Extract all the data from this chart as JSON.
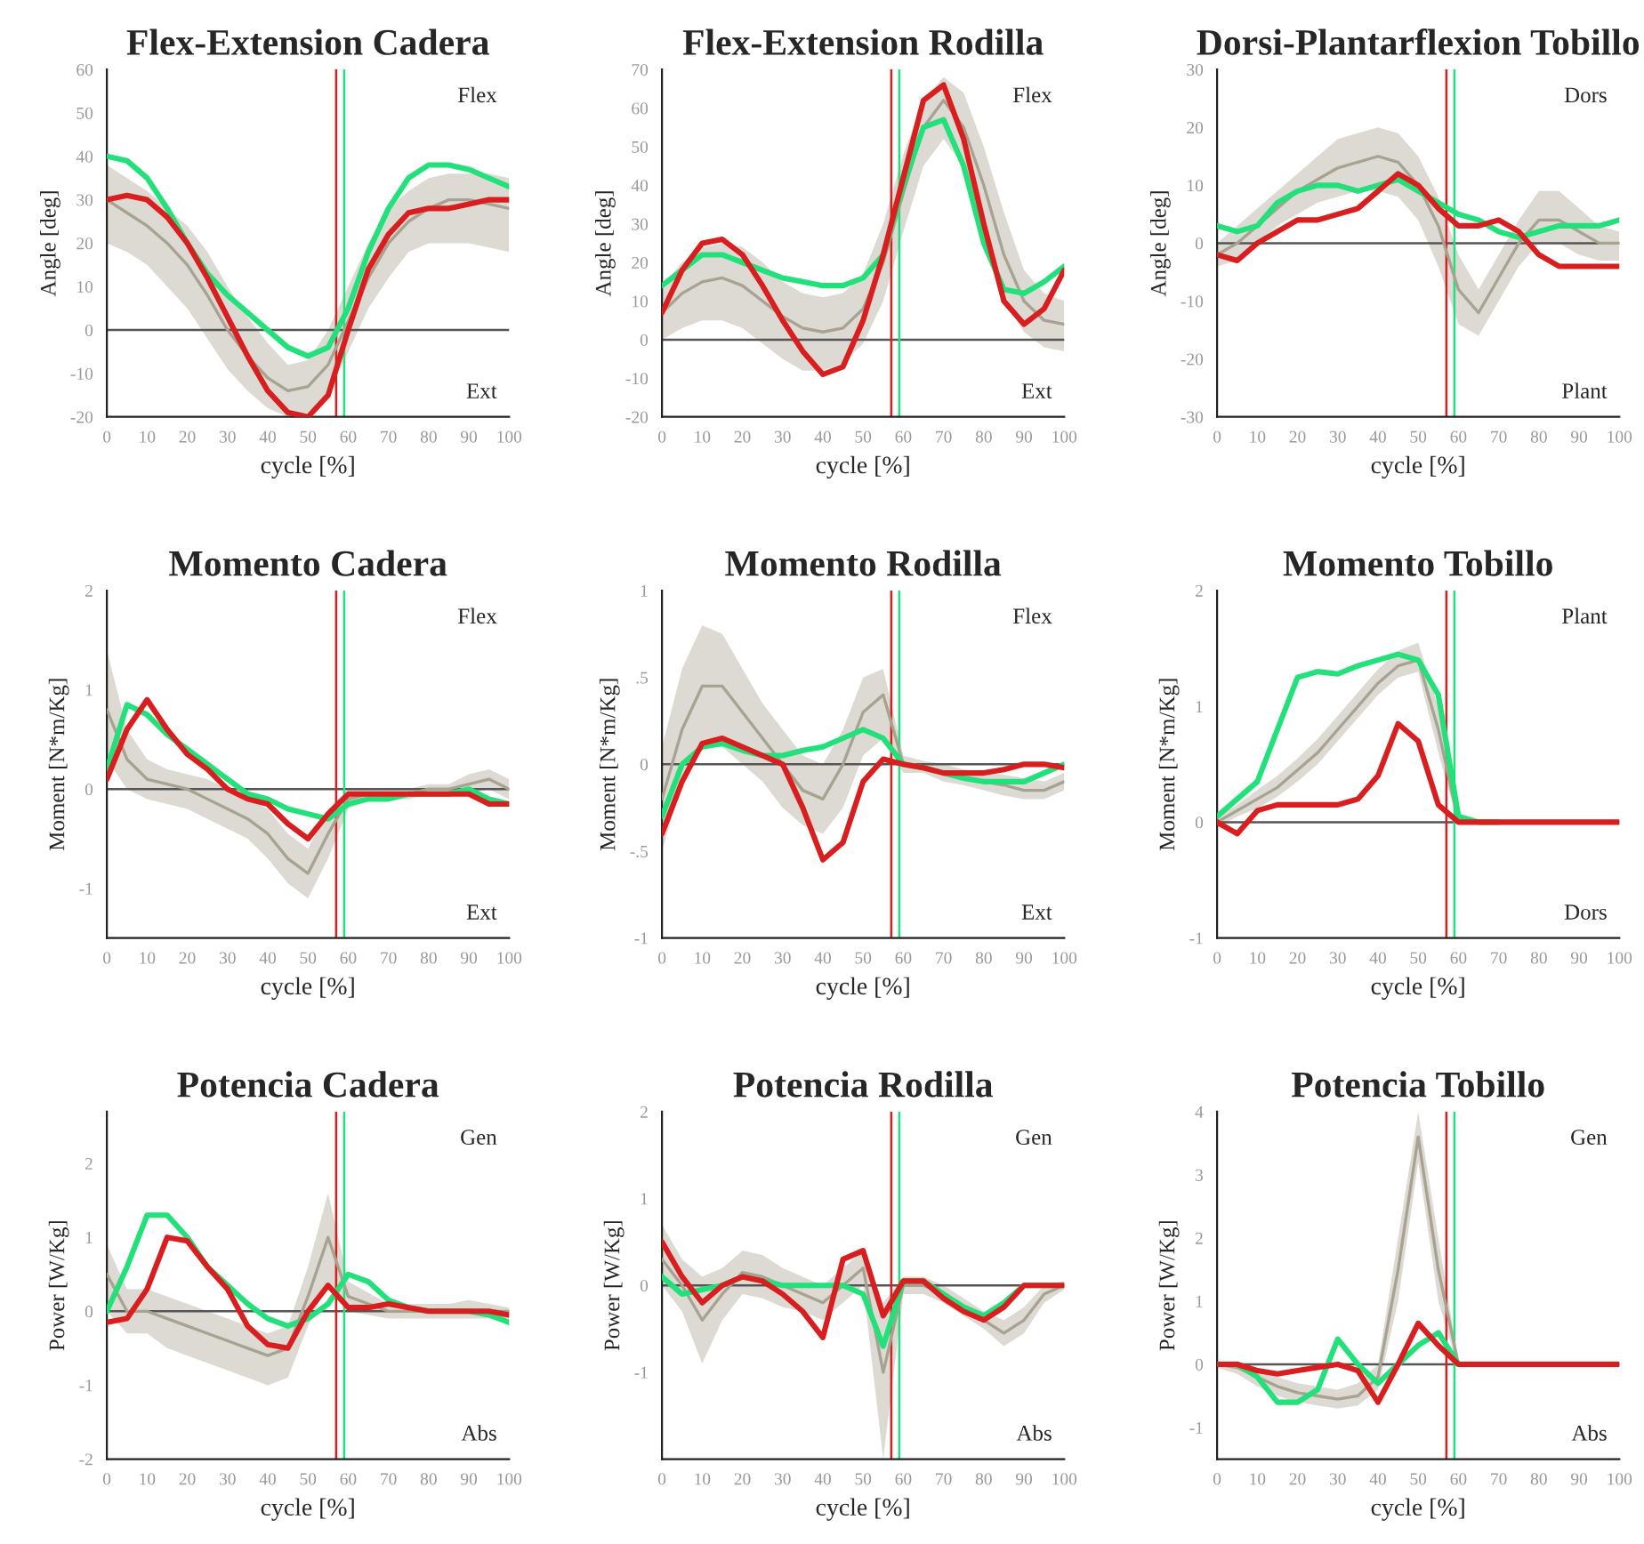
{
  "chart_data": [
    {
      "type": "line",
      "title": "Flex-Extension Cadera",
      "xlabel": "cycle [%]",
      "ylabel": "Angle [deg]",
      "xlim": [
        0,
        100
      ],
      "xticks": [
        0,
        10,
        20,
        30,
        40,
        50,
        60,
        70,
        80,
        90,
        100
      ],
      "ylim": [
        -20,
        60
      ],
      "yticks": [
        -20,
        -10,
        0,
        10,
        20,
        30,
        40,
        50,
        60
      ],
      "grid": false,
      "annotations": [
        "Flex",
        "Ext"
      ],
      "ref_lines": [
        {
          "axis": "y",
          "value": 0,
          "color": "#555555"
        },
        {
          "axis": "x",
          "value": 57,
          "color": "#d81e1e"
        },
        {
          "axis": "x",
          "value": 59,
          "color": "#22e07a"
        }
      ],
      "x": [
        0,
        5,
        10,
        15,
        20,
        25,
        30,
        35,
        40,
        45,
        50,
        55,
        60,
        65,
        70,
        75,
        80,
        85,
        90,
        95,
        100
      ],
      "series": [
        {
          "color": "#a8a290",
          "values": [
            30,
            27,
            24,
            20,
            15,
            8,
            0,
            -6,
            -11,
            -14,
            -13,
            -8,
            2,
            12,
            20,
            25,
            28,
            30,
            30,
            29,
            28
          ],
          "lower": [
            20,
            18,
            15,
            10,
            5,
            -2,
            -9,
            -14,
            -18,
            -20,
            -19,
            -15,
            -5,
            5,
            12,
            18,
            20,
            20,
            20,
            19,
            18
          ],
          "upper": [
            38,
            35,
            32,
            28,
            24,
            18,
            10,
            3,
            -3,
            -8,
            -7,
            0,
            10,
            20,
            28,
            32,
            35,
            36,
            36,
            36,
            35
          ]
        },
        {
          "color": "#22e07a",
          "values": [
            40,
            39,
            35,
            28,
            20,
            13,
            8,
            4,
            0,
            -4,
            -6,
            -4,
            5,
            18,
            28,
            35,
            38,
            38,
            37,
            35,
            33
          ]
        },
        {
          "color": "#d81e1e",
          "values": [
            30,
            31,
            30,
            26,
            20,
            12,
            3,
            -6,
            -14,
            -19,
            -20,
            -15,
            0,
            14,
            22,
            27,
            28,
            28,
            29,
            30,
            30
          ]
        }
      ]
    },
    {
      "type": "line",
      "title": "Flex-Extension Rodilla",
      "xlabel": "cycle [%]",
      "ylabel": "Angle [deg]",
      "xlim": [
        0,
        100
      ],
      "xticks": [
        0,
        10,
        20,
        30,
        40,
        50,
        60,
        70,
        80,
        90,
        100
      ],
      "ylim": [
        -20,
        70
      ],
      "yticks": [
        -20,
        -10,
        0,
        10,
        20,
        30,
        40,
        50,
        60,
        70
      ],
      "grid": false,
      "annotations": [
        "Flex",
        "Ext"
      ],
      "ref_lines": [
        {
          "axis": "y",
          "value": 0,
          "color": "#555555"
        },
        {
          "axis": "x",
          "value": 57,
          "color": "#d81e1e"
        },
        {
          "axis": "x",
          "value": 59,
          "color": "#22e07a"
        }
      ],
      "x": [
        0,
        5,
        10,
        15,
        20,
        25,
        30,
        35,
        40,
        45,
        50,
        55,
        60,
        65,
        70,
        75,
        80,
        85,
        90,
        95,
        100
      ],
      "series": [
        {
          "color": "#a8a290",
          "values": [
            7,
            12,
            15,
            16,
            14,
            10,
            6,
            3,
            2,
            3,
            8,
            20,
            38,
            55,
            62,
            55,
            40,
            22,
            10,
            5,
            4
          ],
          "lower": [
            0,
            3,
            5,
            5,
            3,
            -1,
            -5,
            -8,
            -8,
            -6,
            -1,
            10,
            28,
            45,
            52,
            45,
            28,
            10,
            2,
            -2,
            -3
          ],
          "upper": [
            14,
            20,
            24,
            25,
            24,
            20,
            15,
            12,
            11,
            12,
            17,
            30,
            48,
            62,
            68,
            64,
            50,
            33,
            18,
            12,
            10
          ]
        },
        {
          "color": "#22e07a",
          "values": [
            14,
            18,
            22,
            22,
            20,
            18,
            16,
            15,
            14,
            14,
            16,
            22,
            40,
            55,
            57,
            45,
            25,
            13,
            12,
            15,
            19
          ]
        },
        {
          "color": "#d81e1e",
          "values": [
            7,
            18,
            25,
            26,
            22,
            14,
            5,
            -3,
            -9,
            -7,
            5,
            22,
            42,
            62,
            66,
            52,
            30,
            10,
            4,
            8,
            18
          ]
        }
      ]
    },
    {
      "type": "line",
      "title": "Dorsi-Plantarflexion Tobillo",
      "xlabel": "cycle [%]",
      "ylabel": "Angle [deg]",
      "xlim": [
        0,
        100
      ],
      "xticks": [
        0,
        10,
        20,
        30,
        40,
        50,
        60,
        70,
        80,
        90,
        100
      ],
      "ylim": [
        -30,
        30
      ],
      "yticks": [
        -30,
        -20,
        -10,
        0,
        10,
        20,
        30
      ],
      "grid": false,
      "annotations": [
        "Dors",
        "Plant"
      ],
      "ref_lines": [
        {
          "axis": "y",
          "value": 0,
          "color": "#555555"
        },
        {
          "axis": "x",
          "value": 57,
          "color": "#d81e1e"
        },
        {
          "axis": "x",
          "value": 59,
          "color": "#22e07a"
        }
      ],
      "x": [
        0,
        5,
        10,
        15,
        20,
        25,
        30,
        35,
        40,
        45,
        50,
        55,
        60,
        65,
        70,
        75,
        80,
        85,
        90,
        95,
        100
      ],
      "series": [
        {
          "color": "#a8a290",
          "values": [
            -2,
            0,
            3,
            6,
            9,
            11,
            13,
            14,
            15,
            14,
            10,
            3,
            -8,
            -12,
            -6,
            0,
            4,
            4,
            2,
            0,
            0
          ],
          "lower": [
            -4,
            -3,
            0,
            3,
            5,
            7,
            8,
            9,
            9,
            8,
            4,
            -4,
            -14,
            -16,
            -10,
            -4,
            0,
            0,
            -2,
            -3,
            -3
          ],
          "upper": [
            0,
            3,
            6,
            9,
            12,
            15,
            18,
            19,
            20,
            19,
            15,
            8,
            -2,
            -8,
            -2,
            4,
            9,
            9,
            6,
            3,
            2
          ]
        },
        {
          "color": "#22e07a",
          "values": [
            3,
            2,
            3,
            7,
            9,
            10,
            10,
            9,
            10,
            11,
            9,
            7,
            5,
            4,
            2,
            1,
            2,
            3,
            3,
            3,
            4
          ]
        },
        {
          "color": "#d81e1e",
          "values": [
            -2,
            -3,
            0,
            2,
            4,
            4,
            5,
            6,
            9,
            12,
            10,
            6,
            3,
            3,
            4,
            2,
            -2,
            -4,
            -4,
            -4,
            -4
          ]
        }
      ]
    },
    {
      "type": "line",
      "title": "Momento Cadera",
      "xlabel": "cycle [%]",
      "ylabel": "Moment [N*m/Kg]",
      "xlim": [
        0,
        100
      ],
      "xticks": [
        0,
        10,
        20,
        30,
        40,
        50,
        60,
        70,
        80,
        90,
        100
      ],
      "ylim": [
        -1.5,
        2
      ],
      "yticks": [
        -1,
        0,
        1,
        2
      ],
      "grid": false,
      "annotations": [
        "Flex",
        "Ext"
      ],
      "ref_lines": [
        {
          "axis": "y",
          "value": 0,
          "color": "#555555"
        },
        {
          "axis": "x",
          "value": 57,
          "color": "#d81e1e"
        },
        {
          "axis": "x",
          "value": 59,
          "color": "#22e07a"
        }
      ],
      "x": [
        0,
        5,
        10,
        15,
        20,
        25,
        30,
        35,
        40,
        45,
        50,
        55,
        60,
        65,
        70,
        75,
        80,
        85,
        90,
        95,
        100
      ],
      "series": [
        {
          "color": "#a8a290",
          "values": [
            0.8,
            0.3,
            0.1,
            0.05,
            0,
            -0.1,
            -0.2,
            -0.3,
            -0.45,
            -0.7,
            -0.85,
            -0.45,
            -0.1,
            -0.05,
            -0.05,
            -0.05,
            0,
            0,
            0.05,
            0.1,
            0
          ],
          "lower": [
            0.3,
            0,
            -0.1,
            -0.15,
            -0.2,
            -0.3,
            -0.4,
            -0.5,
            -0.7,
            -0.95,
            -1.1,
            -0.7,
            -0.2,
            -0.1,
            -0.1,
            -0.1,
            -0.05,
            -0.05,
            -0.05,
            0,
            -0.1
          ],
          "upper": [
            1.4,
            0.6,
            0.3,
            0.2,
            0.15,
            0.1,
            0,
            -0.1,
            -0.2,
            -0.45,
            -0.6,
            -0.2,
            0,
            0,
            0,
            0,
            0.05,
            0.05,
            0.15,
            0.2,
            0.1
          ]
        },
        {
          "color": "#22e07a",
          "values": [
            0.2,
            0.85,
            0.75,
            0.55,
            0.4,
            0.25,
            0.1,
            -0.05,
            -0.1,
            -0.2,
            -0.25,
            -0.3,
            -0.15,
            -0.1,
            -0.1,
            -0.05,
            -0.05,
            -0.05,
            0,
            -0.1,
            -0.15
          ]
        },
        {
          "color": "#d81e1e",
          "values": [
            0.1,
            0.6,
            0.9,
            0.6,
            0.35,
            0.2,
            0,
            -0.1,
            -0.15,
            -0.35,
            -0.5,
            -0.25,
            -0.05,
            -0.05,
            -0.05,
            -0.05,
            -0.05,
            -0.05,
            -0.05,
            -0.15,
            -0.15
          ]
        }
      ]
    },
    {
      "type": "line",
      "title": "Momento Rodilla",
      "xlabel": "cycle [%]",
      "ylabel": "Moment [N*m/Kg]",
      "xlim": [
        0,
        100
      ],
      "xticks": [
        0,
        10,
        20,
        30,
        40,
        50,
        60,
        70,
        80,
        90,
        100
      ],
      "ylim": [
        -1,
        1
      ],
      "yticks": [
        -1,
        {
          "value": -0.5,
          "label": "-.5"
        },
        0,
        {
          "value": 0.5,
          "label": ".5"
        },
        1
      ],
      "grid": false,
      "annotations": [
        "Flex",
        "Ext"
      ],
      "ref_lines": [
        {
          "axis": "y",
          "value": 0,
          "color": "#555555"
        },
        {
          "axis": "x",
          "value": 57,
          "color": "#d81e1e"
        },
        {
          "axis": "x",
          "value": 59,
          "color": "#22e07a"
        }
      ],
      "x": [
        0,
        5,
        10,
        15,
        20,
        25,
        30,
        35,
        40,
        45,
        50,
        55,
        60,
        65,
        70,
        75,
        80,
        85,
        90,
        95,
        100
      ],
      "series": [
        {
          "color": "#a8a290",
          "values": [
            -0.2,
            0.2,
            0.45,
            0.45,
            0.3,
            0.15,
            0,
            -0.15,
            -0.2,
            0,
            0.3,
            0.4,
            0,
            -0.02,
            -0.05,
            -0.08,
            -0.1,
            -0.12,
            -0.15,
            -0.15,
            -0.1
          ],
          "lower": [
            -0.5,
            -0.1,
            0.1,
            0.1,
            0,
            -0.1,
            -0.25,
            -0.35,
            -0.4,
            -0.25,
            0.05,
            0.15,
            -0.05,
            -0.05,
            -0.1,
            -0.12,
            -0.15,
            -0.18,
            -0.2,
            -0.2,
            -0.15
          ],
          "upper": [
            0.1,
            0.55,
            0.8,
            0.75,
            0.55,
            0.35,
            0.2,
            0.05,
            0,
            0.2,
            0.5,
            0.55,
            0.05,
            0.02,
            0,
            -0.03,
            -0.05,
            -0.06,
            -0.08,
            -0.1,
            -0.05
          ]
        },
        {
          "color": "#22e07a",
          "values": [
            -0.3,
            0,
            0.1,
            0.12,
            0.08,
            0.05,
            0.05,
            0.08,
            0.1,
            0.15,
            0.2,
            0.15,
            0,
            -0.02,
            -0.05,
            -0.08,
            -0.1,
            -0.1,
            -0.1,
            -0.05,
            0
          ]
        },
        {
          "color": "#d81e1e",
          "values": [
            -0.4,
            -0.1,
            0.12,
            0.15,
            0.1,
            0.05,
            0,
            -0.25,
            -0.55,
            -0.45,
            -0.1,
            0.03,
            0,
            -0.02,
            -0.05,
            -0.05,
            -0.05,
            -0.03,
            0,
            0,
            -0.02
          ]
        }
      ]
    },
    {
      "type": "line",
      "title": "Momento Tobillo",
      "xlabel": "cycle [%]",
      "ylabel": "Moment [N*m/Kg]",
      "xlim": [
        0,
        100
      ],
      "xticks": [
        0,
        10,
        20,
        30,
        40,
        50,
        60,
        70,
        80,
        90,
        100
      ],
      "ylim": [
        -1,
        2
      ],
      "yticks": [
        -1,
        0,
        1,
        2
      ],
      "grid": false,
      "annotations": [
        "Plant",
        "Dors"
      ],
      "ref_lines": [
        {
          "axis": "y",
          "value": 0,
          "color": "#555555"
        },
        {
          "axis": "x",
          "value": 57,
          "color": "#d81e1e"
        },
        {
          "axis": "x",
          "value": 59,
          "color": "#22e07a"
        }
      ],
      "x": [
        0,
        5,
        10,
        15,
        20,
        25,
        30,
        35,
        40,
        45,
        50,
        55,
        60,
        65,
        70,
        75,
        80,
        85,
        90,
        95,
        100
      ],
      "series": [
        {
          "color": "#a8a290",
          "values": [
            0,
            0.1,
            0.2,
            0.3,
            0.45,
            0.6,
            0.8,
            1,
            1.2,
            1.35,
            1.4,
            0.8,
            0,
            0,
            0,
            0,
            0,
            0,
            0,
            0,
            0
          ],
          "lower": [
            -0.05,
            0.05,
            0.12,
            0.22,
            0.35,
            0.5,
            0.7,
            0.9,
            1.1,
            1.25,
            1.3,
            0.6,
            -0.02,
            -0.02,
            -0.02,
            -0.02,
            -0.02,
            -0.02,
            -0.02,
            -0.02,
            -0.02
          ],
          "upper": [
            0.05,
            0.15,
            0.28,
            0.4,
            0.55,
            0.72,
            0.92,
            1.12,
            1.32,
            1.48,
            1.55,
            1,
            0.02,
            0.02,
            0.02,
            0.02,
            0.02,
            0.02,
            0.02,
            0.02,
            0.02
          ]
        },
        {
          "color": "#22e07a",
          "values": [
            0.05,
            0.2,
            0.35,
            0.8,
            1.25,
            1.3,
            1.28,
            1.35,
            1.4,
            1.45,
            1.4,
            1.1,
            0.05,
            0,
            0,
            null,
            null,
            null,
            null,
            null,
            null
          ]
        },
        {
          "color": "#d81e1e",
          "values": [
            0,
            -0.1,
            0.1,
            0.15,
            0.15,
            0.15,
            0.15,
            0.2,
            0.4,
            0.85,
            0.7,
            0.15,
            0,
            0,
            0,
            0,
            0,
            0,
            0,
            0,
            0
          ]
        }
      ]
    },
    {
      "type": "line",
      "title": "Potencia Cadera",
      "xlabel": "cycle [%]",
      "ylabel": "Power [W/Kg]",
      "xlim": [
        0,
        100
      ],
      "xticks": [
        0,
        10,
        20,
        30,
        40,
        50,
        60,
        70,
        80,
        90,
        100
      ],
      "ylim": [
        -2,
        2.7
      ],
      "yticks": [
        -2,
        -1,
        0,
        1,
        2
      ],
      "grid": false,
      "annotations": [
        "Gen",
        "Abs"
      ],
      "ref_lines": [
        {
          "axis": "y",
          "value": 0,
          "color": "#555555"
        },
        {
          "axis": "x",
          "value": 57,
          "color": "#d81e1e"
        },
        {
          "axis": "x",
          "value": 59,
          "color": "#22e07a"
        }
      ],
      "x": [
        0,
        5,
        10,
        15,
        20,
        25,
        30,
        35,
        40,
        45,
        50,
        55,
        60,
        65,
        70,
        75,
        80,
        85,
        90,
        95,
        100
      ],
      "series": [
        {
          "color": "#a8a290",
          "values": [
            0.5,
            0,
            0,
            -0.1,
            -0.2,
            -0.3,
            -0.4,
            -0.5,
            -0.6,
            -0.5,
            0.2,
            1,
            0.2,
            0.1,
            0,
            0,
            0,
            0,
            0,
            0,
            0
          ],
          "lower": [
            0,
            -0.3,
            -0.3,
            -0.5,
            -0.6,
            -0.7,
            -0.8,
            -0.9,
            -1,
            -0.9,
            -0.2,
            0.4,
            0,
            -0.05,
            -0.1,
            -0.1,
            -0.1,
            -0.1,
            -0.1,
            -0.1,
            -0.1
          ],
          "upper": [
            0.9,
            0.3,
            0.3,
            0.2,
            0.1,
            0,
            -0.1,
            -0.2,
            -0.3,
            -0.2,
            0.6,
            1.6,
            0.4,
            0.25,
            0.1,
            0.1,
            0.1,
            0.1,
            0.15,
            0.1,
            0.05
          ]
        },
        {
          "color": "#22e07a",
          "values": [
            0,
            0.6,
            1.3,
            1.3,
            1,
            0.6,
            0.35,
            0.1,
            -0.1,
            -0.2,
            -0.1,
            0.1,
            0.5,
            0.4,
            0.15,
            0.05,
            0,
            0,
            0,
            -0.05,
            -0.15
          ]
        },
        {
          "color": "#d81e1e",
          "values": [
            -0.15,
            -0.1,
            0.3,
            1,
            0.95,
            0.6,
            0.3,
            -0.2,
            -0.45,
            -0.5,
            0,
            0.35,
            0.05,
            0.05,
            0.1,
            0.05,
            0,
            0,
            0,
            0,
            -0.05
          ]
        }
      ]
    },
    {
      "type": "line",
      "title": "Potencia Rodilla",
      "xlabel": "cycle [%]",
      "ylabel": "Power [W/Kg]",
      "xlim": [
        0,
        100
      ],
      "xticks": [
        0,
        10,
        20,
        30,
        40,
        50,
        60,
        70,
        80,
        90,
        100
      ],
      "ylim": [
        -2,
        2
      ],
      "yticks": [
        -1,
        0,
        1,
        2
      ],
      "grid": false,
      "annotations": [
        "Gen",
        "Abs"
      ],
      "ref_lines": [
        {
          "axis": "y",
          "value": 0,
          "color": "#555555"
        },
        {
          "axis": "x",
          "value": 57,
          "color": "#d81e1e"
        },
        {
          "axis": "x",
          "value": 59,
          "color": "#22e07a"
        }
      ],
      "x": [
        0,
        5,
        10,
        15,
        20,
        25,
        30,
        35,
        40,
        45,
        50,
        55,
        60,
        65,
        70,
        75,
        80,
        85,
        90,
        95,
        100
      ],
      "series": [
        {
          "color": "#a8a290",
          "values": [
            0.3,
            0,
            -0.4,
            -0.1,
            0.15,
            0.1,
            0,
            -0.1,
            -0.2,
            0,
            0.2,
            -1,
            0,
            0,
            -0.1,
            -0.25,
            -0.4,
            -0.55,
            -0.4,
            -0.1,
            0
          ],
          "lower": [
            0,
            -0.3,
            -0.9,
            -0.4,
            -0.1,
            -0.15,
            -0.25,
            -0.3,
            -0.4,
            -0.2,
            0,
            -2,
            -0.1,
            -0.1,
            -0.2,
            -0.35,
            -0.5,
            -0.7,
            -0.55,
            -0.2,
            -0.05
          ],
          "upper": [
            0.7,
            0.3,
            0.1,
            0.2,
            0.4,
            0.35,
            0.2,
            0.1,
            0,
            0.2,
            0.4,
            -0.2,
            0.1,
            0.1,
            0,
            -0.15,
            -0.3,
            -0.4,
            -0.25,
            0,
            0.05
          ]
        },
        {
          "color": "#22e07a",
          "values": [
            0.1,
            -0.1,
            -0.05,
            0,
            0.1,
            0.05,
            0,
            0,
            0,
            0,
            -0.1,
            -0.7,
            0.05,
            0.05,
            -0.1,
            -0.25,
            -0.35,
            -0.2,
            0,
            0,
            0
          ]
        },
        {
          "color": "#d81e1e",
          "values": [
            0.5,
            0.1,
            -0.2,
            0,
            0.1,
            0.05,
            -0.1,
            -0.3,
            -0.6,
            0.3,
            0.4,
            -0.35,
            0.05,
            0.05,
            -0.15,
            -0.3,
            -0.4,
            -0.25,
            0,
            0,
            0
          ]
        }
      ]
    },
    {
      "type": "line",
      "title": "Potencia Tobillo",
      "xlabel": "cycle [%]",
      "ylabel": "Power [W/Kg]",
      "xlim": [
        0,
        100
      ],
      "xticks": [
        0,
        10,
        20,
        30,
        40,
        50,
        60,
        70,
        80,
        90,
        100
      ],
      "ylim": [
        -1.5,
        4
      ],
      "yticks": [
        -1,
        0,
        1,
        2,
        3,
        4
      ],
      "grid": false,
      "annotations": [
        "Gen",
        "Abs"
      ],
      "ref_lines": [
        {
          "axis": "y",
          "value": 0,
          "color": "#555555"
        },
        {
          "axis": "x",
          "value": 57,
          "color": "#d81e1e"
        },
        {
          "axis": "x",
          "value": 59,
          "color": "#22e07a"
        }
      ],
      "x": [
        0,
        5,
        10,
        15,
        20,
        25,
        30,
        35,
        40,
        45,
        50,
        55,
        60,
        65,
        70,
        75,
        80,
        85,
        90,
        95,
        100
      ],
      "series": [
        {
          "color": "#a8a290",
          "values": [
            0,
            -0.05,
            -0.2,
            -0.35,
            -0.45,
            -0.5,
            -0.55,
            -0.5,
            -0.2,
            1.5,
            3.6,
            1.5,
            0,
            0,
            0,
            0,
            0,
            0,
            0,
            0,
            0
          ],
          "lower": [
            -0.05,
            -0.15,
            -0.35,
            -0.5,
            -0.6,
            -0.65,
            -0.7,
            -0.65,
            -0.4,
            1,
            3.2,
            1,
            -0.05,
            -0.05,
            -0.05,
            -0.05,
            -0.05,
            -0.05,
            -0.05,
            -0.05,
            -0.05
          ],
          "upper": [
            0.05,
            0.05,
            -0.05,
            -0.2,
            -0.3,
            -0.35,
            -0.4,
            -0.3,
            0,
            2,
            4,
            2,
            0.05,
            0.05,
            0.05,
            0.05,
            0.05,
            0.05,
            0.05,
            0.05,
            0.05
          ]
        },
        {
          "color": "#22e07a",
          "values": [
            0,
            0,
            -0.2,
            -0.6,
            -0.6,
            -0.4,
            0.4,
            0,
            -0.3,
            0,
            0.3,
            0.5,
            0,
            0,
            null,
            null,
            null,
            null,
            null,
            null,
            null
          ]
        },
        {
          "color": "#d81e1e",
          "values": [
            0,
            0,
            -0.1,
            -0.15,
            -0.1,
            -0.05,
            0,
            -0.1,
            -0.6,
            0,
            0.65,
            0.3,
            0,
            0,
            0,
            0,
            0,
            0,
            0,
            0,
            0
          ]
        }
      ]
    }
  ]
}
